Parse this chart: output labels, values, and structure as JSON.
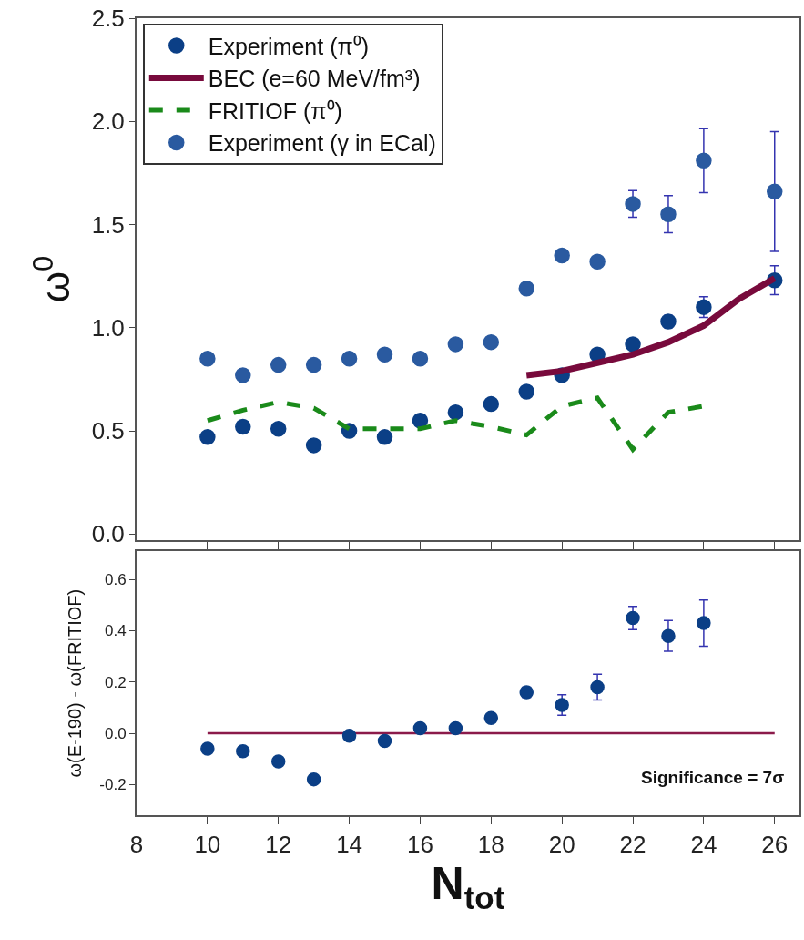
{
  "chart_data": [
    {
      "type": "scatter",
      "ylabel": "ω$^{0}$",
      "xlim": [
        8,
        26.7
      ],
      "xticks": [
        {
          "value": 8,
          "label": null
        },
        {
          "value": 10,
          "label": null
        },
        {
          "value": 12,
          "label": null
        },
        {
          "value": 14,
          "label": null
        },
        {
          "value": 16,
          "label": null
        },
        {
          "value": 18,
          "label": null
        },
        {
          "value": 20,
          "label": null
        },
        {
          "value": 22,
          "label": null
        },
        {
          "value": 24,
          "label": null
        },
        {
          "value": 26,
          "label": null
        }
      ],
      "ylim": [
        -0.03,
        2.5
      ],
      "yticks": [
        {
          "value": 0,
          "label": "0.0"
        },
        0.5,
        {
          "value": 1,
          "label": "1.0"
        },
        1.5,
        {
          "value": 2,
          "label": "2.0"
        },
        2.5
      ],
      "tick_labels": "y",
      "legend": "top left",
      "series": [
        {
          "name": "Experiment (π⁰)",
          "marker": "circle",
          "color": "#0b3f86",
          "x": [
            10,
            11,
            12,
            13,
            14,
            15,
            16,
            17,
            18,
            19,
            20,
            21,
            22,
            23,
            24,
            26
          ],
          "values": [
            0.47,
            0.52,
            0.51,
            0.43,
            0.5,
            0.47,
            0.55,
            0.59,
            0.63,
            0.69,
            0.77,
            0.87,
            0.92,
            1.03,
            1.1,
            1.23
          ],
          "errors": [
            null,
            null,
            null,
            null,
            null,
            null,
            null,
            null,
            null,
            null,
            null,
            null,
            null,
            0.03,
            0.05,
            0.07
          ]
        },
        {
          "name": "BEC (e=60 MeV/fm³)",
          "type": "line",
          "line_style": "solid",
          "color": "#780a3c",
          "x": [
            19,
            20,
            21,
            22,
            23,
            24,
            25,
            26
          ],
          "values": [
            0.77,
            0.79,
            0.83,
            0.87,
            0.93,
            1.01,
            1.14,
            1.24
          ]
        },
        {
          "name": "FRITIOF (π⁰)",
          "type": "line",
          "line_style": "dashed",
          "color": "#1a8a1a",
          "x": [
            10,
            11,
            12,
            13,
            14,
            15,
            16,
            17,
            18,
            19,
            20,
            21,
            22,
            23,
            24
          ],
          "values": [
            0.55,
            0.6,
            0.64,
            0.61,
            0.51,
            0.51,
            0.51,
            0.55,
            0.52,
            0.48,
            0.62,
            0.66,
            0.41,
            0.59,
            0.62
          ]
        },
        {
          "name": "Experiment (γ in ECal)",
          "marker": "circle",
          "color": "#2a5aa0",
          "x": [
            10,
            11,
            12,
            13,
            14,
            15,
            16,
            17,
            18,
            19,
            20,
            21,
            22,
            23,
            24,
            26
          ],
          "values": [
            0.85,
            0.77,
            0.82,
            0.82,
            0.85,
            0.87,
            0.85,
            0.92,
            0.93,
            1.19,
            1.35,
            1.32,
            1.6,
            1.55,
            1.81,
            1.66
          ],
          "errors": [
            null,
            null,
            null,
            null,
            null,
            null,
            null,
            null,
            null,
            null,
            null,
            null,
            0.065,
            0.09,
            0.155,
            0.29
          ]
        }
      ]
    },
    {
      "type": "scatter",
      "xlabel": "N$_{tot}$",
      "ylabel": "ω(E-190) - ω(FRITIOF)",
      "xlim": [
        8,
        26.7
      ],
      "xticks": [
        8,
        10,
        12,
        14,
        16,
        18,
        20,
        22,
        24,
        26
      ],
      "ylim": [
        -0.32,
        0.71
      ],
      "yticks": [
        -0.2,
        {
          "value": 0,
          "label": "0.0"
        },
        0.2,
        0.4,
        0.6
      ],
      "legend": false,
      "annotations": [
        "Significance = 7σ"
      ],
      "series": [
        {
          "type": "line",
          "line_style": "solid",
          "color": "#8b1a4a",
          "x": [
            10,
            26
          ],
          "values": [
            0,
            0
          ]
        },
        {
          "marker": "circle",
          "color": "#0b3f86",
          "x": [
            10,
            11,
            12,
            13,
            14,
            15,
            16,
            17,
            18,
            19,
            20,
            21,
            22,
            23,
            24
          ],
          "values": [
            -0.06,
            -0.07,
            -0.11,
            -0.18,
            -0.01,
            -0.03,
            0.02,
            0.02,
            0.06,
            0.16,
            0.11,
            0.18,
            0.45,
            0.38,
            0.43
          ],
          "errors": [
            null,
            null,
            null,
            null,
            null,
            null,
            null,
            null,
            null,
            0.02,
            0.04,
            0.05,
            0.045,
            0.06,
            0.09
          ]
        }
      ]
    }
  ]
}
